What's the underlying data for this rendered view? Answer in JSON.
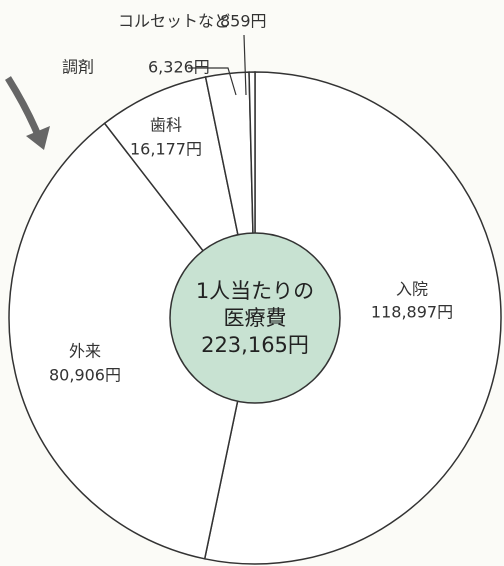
{
  "chart_data": {
    "type": "pie",
    "categories": [
      "入院",
      "外来",
      "歯科",
      "調剤",
      "コルセットなど"
    ],
    "values": [
      118897,
      80906,
      16177,
      6326,
      859
    ],
    "value_labels": [
      "118,897円",
      "80,906円",
      "16,177円",
      "6,326円",
      "859円"
    ],
    "center_text": [
      "1人当たりの",
      "医療費"
    ],
    "center_value": 223165,
    "center_value_label": "223,165円",
    "slice_color": "#ffffff",
    "center_color": "#c8e2d2"
  }
}
